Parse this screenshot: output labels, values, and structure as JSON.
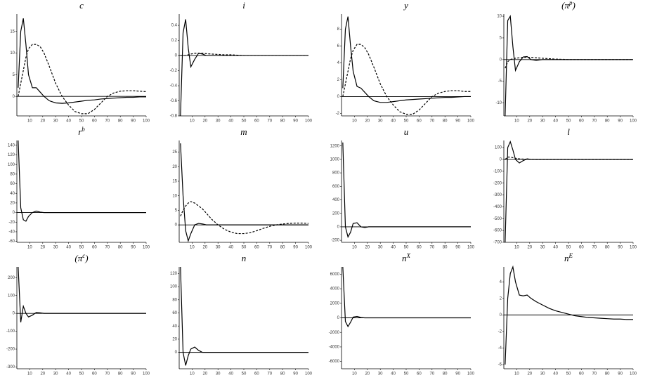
{
  "chart_data": [
    {
      "type": "line",
      "title": "c",
      "x": [
        1,
        3,
        5,
        7,
        9,
        12,
        15,
        18,
        21,
        25,
        30,
        35,
        40,
        45,
        50,
        55,
        60,
        65,
        70,
        75,
        80,
        85,
        90,
        95,
        100
      ],
      "xlim": [
        0,
        100
      ],
      "xticks": [
        10,
        20,
        30,
        40,
        50,
        60,
        70,
        80,
        90,
        100
      ],
      "ylim": [
        -4.5,
        19
      ],
      "yticks": [
        0,
        5,
        10,
        15
      ],
      "series": [
        {
          "color": "#000",
          "style": "solid",
          "values": [
            2,
            15,
            18,
            12,
            5,
            2,
            2,
            1,
            0,
            -1,
            -1.5,
            -1.6,
            -1.5,
            -1.3,
            -1.1,
            -0.9,
            -0.8,
            -0.6,
            -0.5,
            -0.4,
            -0.3,
            -0.2,
            -0.2,
            -0.1,
            -0.1
          ]
        },
        {
          "color": "#000",
          "style": "dashed",
          "values": [
            0,
            3,
            6,
            9,
            11,
            12,
            12,
            11.5,
            10,
            7,
            3,
            0,
            -2,
            -3.5,
            -4,
            -4,
            -3,
            -1.5,
            0,
            0.8,
            1.2,
            1.3,
            1.3,
            1.2,
            1.1
          ]
        }
      ]
    },
    {
      "type": "line",
      "title": "i",
      "x": [
        1,
        3,
        5,
        7,
        9,
        12,
        15,
        18,
        21,
        25,
        30,
        35,
        40,
        45,
        50,
        55,
        60,
        65,
        70,
        75,
        80,
        85,
        90,
        95,
        100
      ],
      "xlim": [
        0,
        100
      ],
      "xticks": [
        10,
        20,
        30,
        40,
        50,
        60,
        70,
        80,
        90,
        100
      ],
      "ylim": [
        -0.8,
        0.55
      ],
      "yticks": [
        -0.8,
        -0.6,
        -0.4,
        -0.2,
        0,
        0.2,
        0.4
      ],
      "series": [
        {
          "color": "#000",
          "style": "solid",
          "values": [
            -0.8,
            0.3,
            0.48,
            0.1,
            -0.15,
            -0.05,
            0.03,
            0.02,
            0,
            0,
            0,
            0,
            0,
            0,
            0,
            0,
            0,
            0,
            0,
            0,
            0,
            0,
            0,
            0,
            0
          ]
        },
        {
          "color": "#000",
          "style": "dashed",
          "values": [
            0,
            0,
            0,
            0.01,
            0.02,
            0.03,
            0.03,
            0.03,
            0.025,
            0.02,
            0.015,
            0.01,
            0.01,
            0.005,
            0,
            0,
            0,
            0,
            0,
            0,
            0,
            0,
            0,
            0,
            0
          ]
        }
      ]
    },
    {
      "type": "line",
      "title": "y",
      "x": [
        1,
        3,
        5,
        7,
        9,
        12,
        15,
        18,
        21,
        25,
        30,
        35,
        40,
        45,
        50,
        55,
        60,
        65,
        70,
        75,
        80,
        85,
        90,
        95,
        100
      ],
      "xlim": [
        0,
        100
      ],
      "xticks": [
        10,
        20,
        30,
        40,
        50,
        60,
        70,
        80,
        90,
        100
      ],
      "ylim": [
        -2.3,
        9.8
      ],
      "yticks": [
        -2,
        0,
        2,
        4,
        6,
        8
      ],
      "series": [
        {
          "color": "#000",
          "style": "solid",
          "values": [
            1,
            8,
            9.5,
            6,
            3,
            1.2,
            1,
            0.5,
            0,
            -0.5,
            -0.7,
            -0.7,
            -0.6,
            -0.5,
            -0.4,
            -0.35,
            -0.3,
            -0.25,
            -0.2,
            -0.15,
            -0.1,
            -0.1,
            -0.05,
            0,
            0
          ]
        },
        {
          "color": "#000",
          "style": "dashed",
          "values": [
            0,
            1.5,
            3,
            4.5,
            5.5,
            6.2,
            6.2,
            5.8,
            5,
            3.5,
            1.5,
            0,
            -1,
            -1.8,
            -2.1,
            -2.1,
            -1.6,
            -0.8,
            0,
            0.4,
            0.6,
            0.7,
            0.7,
            0.6,
            0.6
          ]
        }
      ]
    },
    {
      "type": "line",
      "title": "(π",
      "title_sup": "p",
      "title_end": ")",
      "x": [
        1,
        3,
        5,
        7,
        9,
        12,
        15,
        18,
        21,
        25,
        30,
        35,
        40,
        45,
        50,
        55,
        60,
        65,
        70,
        75,
        80,
        85,
        90,
        95,
        100
      ],
      "xlim": [
        0,
        100
      ],
      "xticks": [
        10,
        20,
        30,
        40,
        50,
        60,
        70,
        80,
        90,
        100
      ],
      "ylim": [
        -13,
        10.5
      ],
      "yticks": [
        -10,
        -5,
        0,
        5,
        10
      ],
      "series": [
        {
          "color": "#000",
          "style": "solid",
          "values": [
            -13,
            9,
            10,
            3,
            -2.5,
            -0.5,
            0.6,
            0.7,
            0,
            -0.2,
            0,
            0,
            0,
            0,
            0,
            0,
            0,
            0,
            0,
            0,
            0,
            0,
            0,
            0,
            0
          ]
        },
        {
          "color": "#000",
          "style": "dashed",
          "values": [
            -2,
            -0.5,
            0,
            0.2,
            0.3,
            0.4,
            0.5,
            0.5,
            0.5,
            0.4,
            0.3,
            0.2,
            0.1,
            0.05,
            0,
            0,
            0,
            0,
            0,
            0,
            0,
            0,
            0,
            0,
            0
          ]
        }
      ]
    },
    {
      "type": "line",
      "title": "r",
      "title_sup": "b",
      "x": [
        1,
        3,
        5,
        7,
        9,
        12,
        15,
        18,
        21,
        25,
        30,
        35,
        40,
        45,
        50,
        55,
        60,
        65,
        70,
        75,
        80,
        85,
        90,
        95,
        100
      ],
      "xlim": [
        0,
        100
      ],
      "xticks": [
        10,
        20,
        30,
        40,
        50,
        60,
        70,
        80,
        90,
        100
      ],
      "ylim": [
        -62,
        150
      ],
      "yticks": [
        -60,
        -40,
        -20,
        0,
        20,
        40,
        60,
        80,
        100,
        120,
        140
      ],
      "series": [
        {
          "color": "#000",
          "style": "solid",
          "values": [
            150,
            10,
            -15,
            -18,
            -8,
            0,
            3,
            1,
            0,
            0,
            0,
            0,
            0,
            0,
            0,
            0,
            0,
            0,
            0,
            0,
            0,
            0,
            0,
            0,
            0
          ]
        }
      ]
    },
    {
      "type": "line",
      "title": "m",
      "x": [
        1,
        3,
        5,
        7,
        9,
        12,
        15,
        18,
        21,
        25,
        30,
        35,
        40,
        45,
        50,
        55,
        60,
        65,
        70,
        75,
        80,
        85,
        90,
        95,
        100
      ],
      "xlim": [
        0,
        100
      ],
      "xticks": [
        10,
        20,
        30,
        40,
        50,
        60,
        70,
        80,
        90,
        100
      ],
      "ylim": [
        -6,
        29
      ],
      "yticks": [
        0,
        5,
        10,
        15,
        20,
        25
      ],
      "series": [
        {
          "color": "#000",
          "style": "solid",
          "values": [
            28,
            10,
            -2,
            -5.5,
            -3,
            0,
            0.5,
            0.3,
            0,
            0,
            0,
            0,
            0,
            0,
            0,
            0,
            0,
            0,
            0,
            0,
            0,
            0,
            0,
            0,
            0
          ]
        },
        {
          "color": "#000",
          "style": "dashed",
          "values": [
            3,
            5,
            6.5,
            7.5,
            8,
            7.5,
            6.5,
            5.5,
            4,
            2,
            0,
            -1.5,
            -2.5,
            -3,
            -3,
            -2.7,
            -2,
            -1.2,
            -0.5,
            0,
            0.3,
            0.5,
            0.6,
            0.6,
            0.5
          ]
        }
      ]
    },
    {
      "type": "line",
      "title": "u",
      "x": [
        1,
        3,
        5,
        7,
        9,
        12,
        15,
        18,
        21,
        25,
        30,
        35,
        40,
        45,
        50,
        55,
        60,
        65,
        70,
        75,
        80,
        85,
        90,
        95,
        100
      ],
      "xlim": [
        0,
        100
      ],
      "xticks": [
        10,
        20,
        30,
        40,
        50,
        60,
        70,
        80,
        90,
        100
      ],
      "ylim": [
        -230,
        1280
      ],
      "yticks": [
        -200,
        0,
        200,
        400,
        600,
        800,
        1000,
        1200
      ],
      "series": [
        {
          "color": "#000",
          "style": "solid",
          "values": [
            1250,
            0,
            -150,
            -80,
            50,
            60,
            0,
            -10,
            0,
            0,
            0,
            0,
            0,
            0,
            0,
            0,
            0,
            0,
            0,
            0,
            0,
            0,
            0,
            0,
            0
          ]
        }
      ]
    },
    {
      "type": "line",
      "title": "l",
      "x": [
        1,
        3,
        5,
        7,
        9,
        12,
        15,
        18,
        21,
        25,
        30,
        35,
        40,
        45,
        50,
        55,
        60,
        65,
        70,
        75,
        80,
        85,
        90,
        95,
        100
      ],
      "xlim": [
        0,
        100
      ],
      "xticks": [
        10,
        20,
        30,
        40,
        50,
        60,
        70,
        80,
        90,
        100
      ],
      "ylim": [
        -700,
        160
      ],
      "yticks": [
        -700,
        -600,
        -500,
        -400,
        -300,
        -200,
        -100,
        0,
        100
      ],
      "series": [
        {
          "color": "#000",
          "style": "solid",
          "values": [
            -700,
            100,
            150,
            80,
            0,
            -30,
            -10,
            5,
            0,
            0,
            0,
            0,
            0,
            0,
            0,
            0,
            0,
            0,
            0,
            0,
            0,
            0,
            0,
            0,
            0
          ]
        },
        {
          "color": "#000",
          "style": "dashed",
          "values": [
            0,
            20,
            20,
            15,
            10,
            5,
            3,
            2,
            1,
            0,
            0,
            0,
            0,
            0,
            0,
            0,
            0,
            0,
            0,
            0,
            0,
            0,
            0,
            0,
            0
          ]
        }
      ]
    },
    {
      "type": "line",
      "title": "(π",
      "title_sup": "c",
      "title_end": ")",
      "x": [
        1,
        3,
        5,
        7,
        9,
        12,
        15,
        18,
        21,
        25,
        30,
        35,
        40,
        45,
        50,
        55,
        60,
        65,
        70,
        75,
        80,
        85,
        90,
        95,
        100
      ],
      "xlim": [
        0,
        100
      ],
      "xticks": [
        10,
        20,
        30,
        40,
        50,
        60,
        70,
        80,
        90,
        100
      ],
      "ylim": [
        -310,
        260
      ],
      "yticks": [
        -300,
        -200,
        -100,
        0,
        100,
        200
      ],
      "series": [
        {
          "color": "#000",
          "style": "solid",
          "values": [
            260,
            -50,
            40,
            0,
            -20,
            -10,
            5,
            3,
            0,
            0,
            0,
            0,
            0,
            0,
            0,
            0,
            0,
            0,
            0,
            0,
            0,
            0,
            0,
            0,
            0
          ]
        }
      ]
    },
    {
      "type": "line",
      "title": "n",
      "x": [
        1,
        3,
        5,
        7,
        9,
        12,
        15,
        18,
        21,
        25,
        30,
        35,
        40,
        45,
        50,
        55,
        60,
        65,
        70,
        75,
        80,
        85,
        90,
        95,
        100
      ],
      "xlim": [
        0,
        100
      ],
      "xticks": [
        10,
        20,
        30,
        40,
        50,
        60,
        70,
        80,
        90,
        100
      ],
      "ylim": [
        -25,
        130
      ],
      "yticks": [
        0,
        20,
        40,
        60,
        80,
        100,
        120
      ],
      "series": [
        {
          "color": "#000",
          "style": "solid",
          "values": [
            130,
            0,
            -20,
            -5,
            5,
            8,
            3,
            0,
            0,
            0,
            0,
            0,
            0,
            0,
            0,
            0,
            0,
            0,
            0,
            0,
            0,
            0,
            0,
            0,
            0
          ]
        }
      ]
    },
    {
      "type": "line",
      "title": "n",
      "title_sup": "X",
      "x": [
        1,
        3,
        5,
        7,
        9,
        12,
        15,
        18,
        21,
        25,
        30,
        35,
        40,
        45,
        50,
        55,
        60,
        65,
        70,
        75,
        80,
        85,
        90,
        95,
        100
      ],
      "xlim": [
        0,
        100
      ],
      "xticks": [
        10,
        20,
        30,
        40,
        50,
        60,
        70,
        80,
        90,
        100
      ],
      "ylim": [
        -7000,
        7000
      ],
      "yticks": [
        -6000,
        -4000,
        -2000,
        0,
        2000,
        4000,
        6000
      ],
      "series": [
        {
          "color": "#000",
          "style": "solid",
          "values": [
            7000,
            -500,
            -1200,
            -600,
            100,
            200,
            50,
            0,
            0,
            0,
            0,
            0,
            0,
            0,
            0,
            0,
            0,
            0,
            0,
            0,
            0,
            0,
            0,
            0,
            0
          ]
        }
      ]
    },
    {
      "type": "line",
      "title": "n",
      "title_sup": "E",
      "x": [
        1,
        3,
        5,
        7,
        9,
        12,
        15,
        18,
        21,
        25,
        30,
        35,
        40,
        45,
        50,
        55,
        60,
        65,
        70,
        75,
        80,
        85,
        90,
        95,
        100
      ],
      "xlim": [
        0,
        100
      ],
      "xticks": [
        10,
        20,
        30,
        40,
        50,
        60,
        70,
        80,
        90,
        100
      ],
      "ylim": [
        -6.5,
        5.8
      ],
      "yticks": [
        -6,
        -4,
        -2,
        0,
        2,
        4
      ],
      "series": [
        {
          "color": "#000",
          "style": "solid",
          "values": [
            -6,
            2,
            5,
            5.8,
            4,
            2.4,
            2.3,
            2.4,
            2,
            1.6,
            1.2,
            0.8,
            0.5,
            0.3,
            0.1,
            -0.1,
            -0.2,
            -0.3,
            -0.35,
            -0.4,
            -0.45,
            -0.5,
            -0.5,
            -0.55,
            -0.55
          ]
        }
      ]
    }
  ]
}
